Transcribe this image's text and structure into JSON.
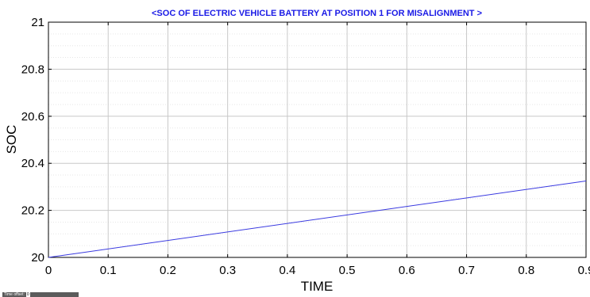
{
  "chart_data": {
    "type": "line",
    "title": "<SOC OF ELECTRIC VEHICLE BATTERY  AT POSITION 1 FOR MISALIGNMENT >",
    "xlabel": "TIME",
    "ylabel": "SOC",
    "xlim": [
      0,
      0.9
    ],
    "ylim": [
      20,
      21
    ],
    "xticks": [
      "0",
      "0.1",
      "0.2",
      "0.3",
      "0.4",
      "0.5",
      "0.6",
      "0.7",
      "0.8",
      "0.9"
    ],
    "yticks": [
      "20",
      "20.2",
      "20.4",
      "20.6",
      "20.8",
      "21"
    ],
    "grid": true,
    "minor_grid": true,
    "series": [
      {
        "color": "#3a3ae0",
        "x": [
          0,
          0.9
        ],
        "y": [
          20.0,
          20.325
        ]
      }
    ]
  },
  "colors": {
    "title": "#1a1ae6",
    "grid": "#c8c8c8",
    "minor_grid": "#e6e6e6"
  },
  "footer": {
    "time_offset_label": "Time offset:",
    "time_offset_value": "0"
  }
}
